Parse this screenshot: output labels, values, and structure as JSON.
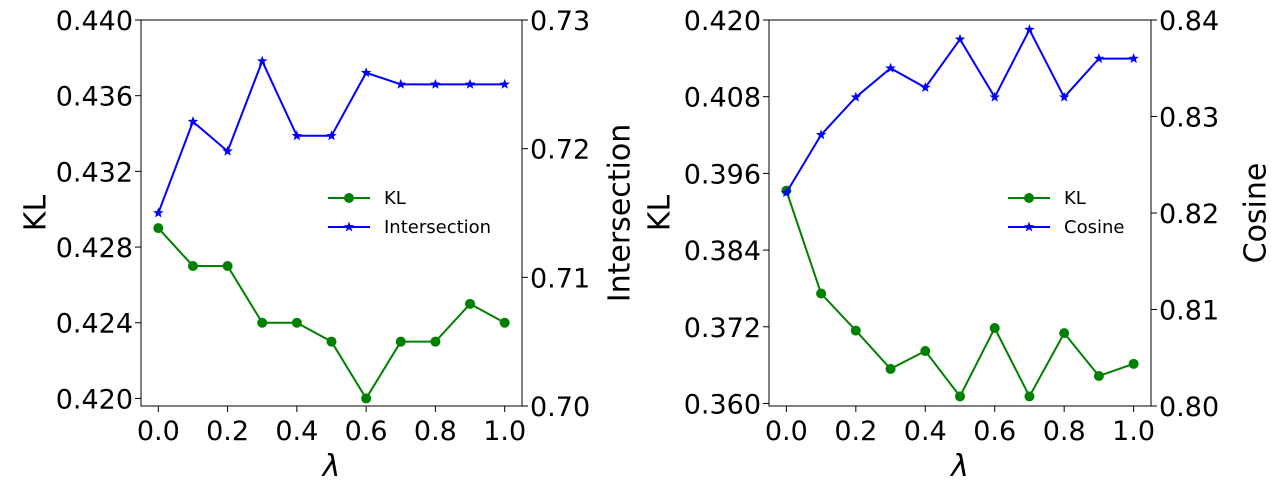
{
  "chart_data": [
    {
      "type": "line",
      "x": [
        0.0,
        0.1,
        0.2,
        0.3,
        0.4,
        0.5,
        0.6,
        0.7,
        0.8,
        0.9,
        1.0
      ],
      "xlabel": "λ",
      "xticks": [
        "0.0",
        "0.2",
        "0.4",
        "0.6",
        "0.8",
        "1.0"
      ],
      "xtick_values": [
        0.0,
        0.2,
        0.4,
        0.6,
        0.8,
        1.0
      ],
      "xlim": [
        -0.05,
        1.05
      ],
      "left_axis": {
        "label": "KL",
        "ylim": [
          0.4196,
          0.44
        ],
        "ticks": [
          "0.420",
          "0.424",
          "0.428",
          "0.432",
          "0.436",
          "0.440"
        ],
        "tick_values": [
          0.42,
          0.424,
          0.428,
          0.432,
          0.436,
          0.44
        ]
      },
      "right_axis": {
        "label": "Intersection",
        "ylim": [
          0.7,
          0.73
        ],
        "ticks": [
          "0.70",
          "0.71",
          "0.72",
          "0.73"
        ],
        "tick_values": [
          0.7,
          0.71,
          0.72,
          0.73
        ]
      },
      "series": [
        {
          "name": "KL",
          "axis": "left",
          "color": "#008000",
          "marker": "circle",
          "values": [
            0.429,
            0.427,
            0.427,
            0.424,
            0.424,
            0.423,
            0.42,
            0.423,
            0.423,
            0.425,
            0.424
          ]
        },
        {
          "name": "Intersection",
          "axis": "right",
          "color": "#0000ff",
          "marker": "star",
          "values": [
            0.715,
            0.7221,
            0.7198,
            0.7268,
            0.721,
            0.721,
            0.7259,
            0.725,
            0.725,
            0.725,
            0.725
          ]
        }
      ],
      "legend": {
        "position": "center-right",
        "entries": [
          "KL",
          "Intersection"
        ]
      }
    },
    {
      "type": "line",
      "x": [
        0.0,
        0.1,
        0.2,
        0.3,
        0.4,
        0.5,
        0.6,
        0.7,
        0.8,
        0.9,
        1.0
      ],
      "xlabel": "λ",
      "xticks": [
        "0.0",
        "0.2",
        "0.4",
        "0.6",
        "0.8",
        "1.0"
      ],
      "xtick_values": [
        0.0,
        0.2,
        0.4,
        0.6,
        0.8,
        1.0
      ],
      "xlim": [
        -0.05,
        1.05
      ],
      "left_axis": {
        "label": "KL",
        "ylim": [
          0.3596,
          0.42
        ],
        "ticks": [
          "0.360",
          "0.372",
          "0.384",
          "0.396",
          "0.408",
          "0.420"
        ],
        "tick_values": [
          0.36,
          0.372,
          0.384,
          0.396,
          0.408,
          0.42
        ]
      },
      "right_axis": {
        "label": "Cosine",
        "ylim": [
          0.8,
          0.84
        ],
        "ticks": [
          "0.80",
          "0.81",
          "0.82",
          "0.83",
          "0.84"
        ],
        "tick_values": [
          0.8,
          0.81,
          0.82,
          0.83,
          0.84
        ]
      },
      "series": [
        {
          "name": "KL",
          "axis": "left",
          "color": "#008000",
          "marker": "circle",
          "values": [
            0.3933,
            0.3772,
            0.3714,
            0.3654,
            0.3682,
            0.3611,
            0.3718,
            0.3611,
            0.371,
            0.3643,
            0.3662
          ]
        },
        {
          "name": "Cosine",
          "axis": "right",
          "color": "#0000ff",
          "marker": "star",
          "values": [
            0.8221,
            0.8281,
            0.832,
            0.835,
            0.833,
            0.838,
            0.832,
            0.839,
            0.832,
            0.836,
            0.836
          ]
        }
      ],
      "legend": {
        "position": "center-right",
        "entries": [
          "KL",
          "Cosine"
        ]
      }
    }
  ]
}
